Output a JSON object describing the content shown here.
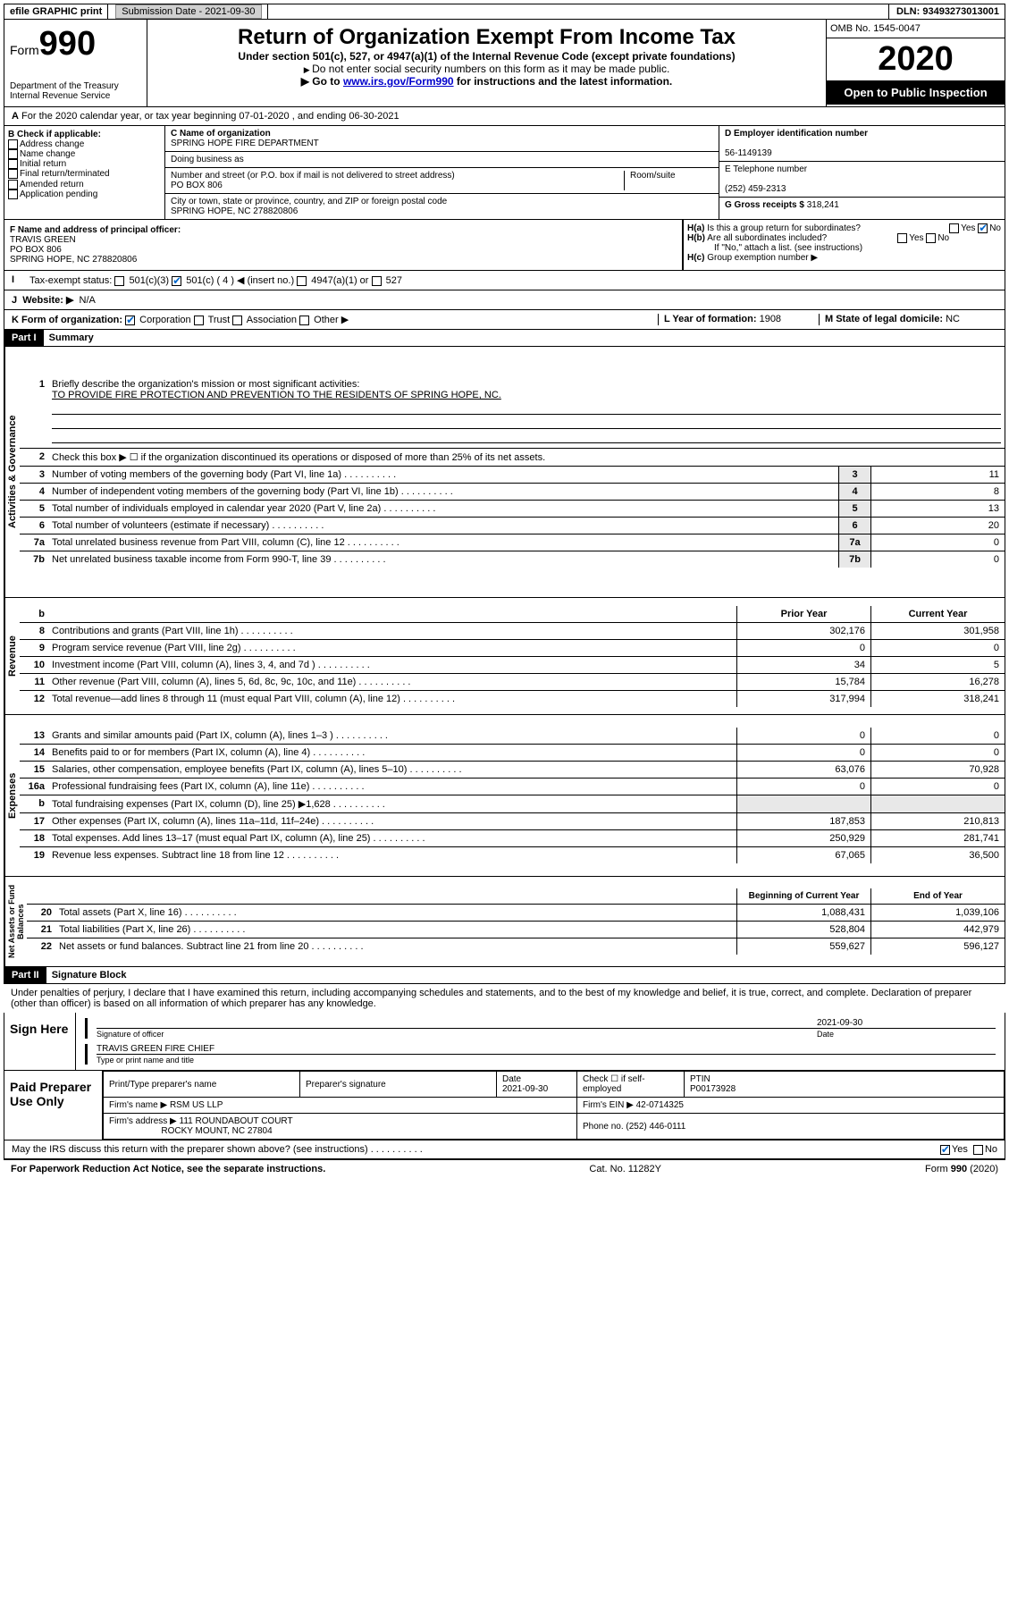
{
  "topbar": {
    "efile_label": "efile GRAPHIC print",
    "submission_label": "Submission Date",
    "submission_date": "2021-09-30",
    "dln_label": "DLN:",
    "dln": "93493273013001"
  },
  "header": {
    "form_prefix": "Form",
    "form_number": "990",
    "department": "Department of the Treasury\nInternal Revenue Service",
    "title": "Return of Organization Exempt From Income Tax",
    "subtitle": "Under section 501(c), 527, or 4947(a)(1) of the Internal Revenue Code (except private foundations)",
    "note1": "Do not enter social security numbers on this form as it may be made public.",
    "note2_pre": "Go to ",
    "note2_link": "www.irs.gov/Form990",
    "note2_post": " for instructions and the latest information.",
    "omb": "OMB No. 1545-0047",
    "year": "2020",
    "open_public": "Open to Public Inspection"
  },
  "period": {
    "line": "For the 2020 calendar year, or tax year beginning 07-01-2020   , and ending 06-30-2021"
  },
  "section_b": {
    "label": "B Check if applicable:",
    "items": [
      "Address change",
      "Name change",
      "Initial return",
      "Final return/terminated",
      "Amended return",
      "Application pending"
    ]
  },
  "section_c": {
    "name_label": "C Name of organization",
    "name": "SPRING HOPE FIRE DEPARTMENT",
    "dba_label": "Doing business as",
    "street_label": "Number and street (or P.O. box if mail is not delivered to street address)",
    "room_label": "Room/suite",
    "street": "PO BOX 806",
    "city_label": "City or town, state or province, country, and ZIP or foreign postal code",
    "city": "SPRING HOPE, NC  278820806"
  },
  "section_d": {
    "label": "D Employer identification number",
    "value": "56-1149139"
  },
  "section_e": {
    "label": "E Telephone number",
    "value": "(252) 459-2313"
  },
  "section_g": {
    "label": "G Gross receipts $",
    "value": "318,241"
  },
  "section_f": {
    "label": "F  Name and address of principal officer:",
    "name": "TRAVIS GREEN",
    "street": "PO BOX 806",
    "city": "SPRING HOPE, NC  278820806"
  },
  "section_h": {
    "ha": "Is this a group return for subordinates?",
    "hb": "Are all subordinates included?",
    "hb_note": "If \"No,\" attach a list. (see instructions)",
    "hc": "Group exemption number ▶"
  },
  "section_i": {
    "label": "Tax-exempt status:",
    "opts": [
      "501(c)(3)",
      "501(c) ( 4 ) ◀ (insert no.)",
      "4947(a)(1) or",
      "527"
    ]
  },
  "section_j": {
    "label": "Website: ▶",
    "value": "N/A"
  },
  "section_k": {
    "label": "K Form of organization:",
    "opts": [
      "Corporation",
      "Trust",
      "Association",
      "Other ▶"
    ]
  },
  "section_l": {
    "label": "L Year of formation:",
    "value": "1908"
  },
  "section_m": {
    "label": "M State of legal domicile:",
    "value": "NC"
  },
  "part1": {
    "header": "Part I",
    "title": "Summary",
    "q1_label": "Briefly describe the organization's mission or most significant activities:",
    "q1_text": "TO PROVIDE FIRE PROTECTION AND PREVENTION TO THE RESIDENTS OF SPRING HOPE, NC.",
    "q2": "Check this box ▶ ☐  if the organization discontinued its operations or disposed of more than 25% of its net assets.",
    "governance": [
      {
        "n": "3",
        "t": "Number of voting members of the governing body (Part VI, line 1a)",
        "v": "11"
      },
      {
        "n": "4",
        "t": "Number of independent voting members of the governing body (Part VI, line 1b)",
        "v": "8"
      },
      {
        "n": "5",
        "t": "Total number of individuals employed in calendar year 2020 (Part V, line 2a)",
        "v": "13"
      },
      {
        "n": "6",
        "t": "Total number of volunteers (estimate if necessary)",
        "v": "20"
      },
      {
        "n": "7a",
        "t": "Total unrelated business revenue from Part VIII, column (C), line 12",
        "v": "0"
      },
      {
        "n": "7b",
        "t": "Net unrelated business taxable income from Form 990-T, line 39",
        "v": "0"
      }
    ],
    "col_headers": {
      "b": "b",
      "prior": "Prior Year",
      "current": "Current Year"
    },
    "revenue": [
      {
        "n": "8",
        "t": "Contributions and grants (Part VIII, line 1h)",
        "p": "302,176",
        "c": "301,958"
      },
      {
        "n": "9",
        "t": "Program service revenue (Part VIII, line 2g)",
        "p": "0",
        "c": "0"
      },
      {
        "n": "10",
        "t": "Investment income (Part VIII, column (A), lines 3, 4, and 7d )",
        "p": "34",
        "c": "5"
      },
      {
        "n": "11",
        "t": "Other revenue (Part VIII, column (A), lines 5, 6d, 8c, 9c, 10c, and 11e)",
        "p": "15,784",
        "c": "16,278"
      },
      {
        "n": "12",
        "t": "Total revenue—add lines 8 through 11 (must equal Part VIII, column (A), line 12)",
        "p": "317,994",
        "c": "318,241"
      }
    ],
    "expenses": [
      {
        "n": "13",
        "t": "Grants and similar amounts paid (Part IX, column (A), lines 1–3 )",
        "p": "0",
        "c": "0"
      },
      {
        "n": "14",
        "t": "Benefits paid to or for members (Part IX, column (A), line 4)",
        "p": "0",
        "c": "0"
      },
      {
        "n": "15",
        "t": "Salaries, other compensation, employee benefits (Part IX, column (A), lines 5–10)",
        "p": "63,076",
        "c": "70,928"
      },
      {
        "n": "16a",
        "t": "Professional fundraising fees (Part IX, column (A), line 11e)",
        "p": "0",
        "c": "0"
      },
      {
        "n": "b",
        "t": "Total fundraising expenses (Part IX, column (D), line 25) ▶1,628",
        "p": "",
        "c": ""
      },
      {
        "n": "17",
        "t": "Other expenses (Part IX, column (A), lines 11a–11d, 11f–24e)",
        "p": "187,853",
        "c": "210,813"
      },
      {
        "n": "18",
        "t": "Total expenses. Add lines 13–17 (must equal Part IX, column (A), line 25)",
        "p": "250,929",
        "c": "281,741"
      },
      {
        "n": "19",
        "t": "Revenue less expenses. Subtract line 18 from line 12",
        "p": "67,065",
        "c": "36,500"
      }
    ],
    "net_headers": {
      "begin": "Beginning of Current Year",
      "end": "End of Year"
    },
    "netassets": [
      {
        "n": "20",
        "t": "Total assets (Part X, line 16)",
        "p": "1,088,431",
        "c": "1,039,106"
      },
      {
        "n": "21",
        "t": "Total liabilities (Part X, line 26)",
        "p": "528,804",
        "c": "442,979"
      },
      {
        "n": "22",
        "t": "Net assets or fund balances. Subtract line 21 from line 20",
        "p": "559,627",
        "c": "596,127"
      }
    ],
    "vert_labels": {
      "gov": "Activities & Governance",
      "rev": "Revenue",
      "exp": "Expenses",
      "net": "Net Assets or Fund Balances"
    }
  },
  "part2": {
    "header": "Part II",
    "title": "Signature Block",
    "perjury": "Under penalties of perjury, I declare that I have examined this return, including accompanying schedules and statements, and to the best of my knowledge and belief, it is true, correct, and complete. Declaration of preparer (other than officer) is based on all information of which preparer has any knowledge.",
    "sign_here": "Sign Here",
    "sig_officer": "Signature of officer",
    "sig_date_label": "Date",
    "sig_date": "2021-09-30",
    "officer": "TRAVIS GREEN  FIRE CHIEF",
    "type_name": "Type or print name and title",
    "paid_prep": "Paid Preparer Use Only",
    "prep_name_label": "Print/Type preparer's name",
    "prep_sig_label": "Preparer's signature",
    "prep_date_label": "Date",
    "prep_date": "2021-09-30",
    "self_emp": "Check ☐ if self-employed",
    "ptin_label": "PTIN",
    "ptin": "P00173928",
    "firm_name_label": "Firm's name    ▶",
    "firm_name": "RSM US LLP",
    "firm_ein_label": "Firm's EIN ▶",
    "firm_ein": "42-0714325",
    "firm_addr_label": "Firm's address ▶",
    "firm_addr1": "111 ROUNDABOUT COURT",
    "firm_addr2": "ROCKY MOUNT, NC  27804",
    "phone_label": "Phone no.",
    "phone": "(252) 446-0111",
    "discuss": "May the IRS discuss this return with the preparer shown above? (see instructions)"
  },
  "footer": {
    "left": "For Paperwork Reduction Act Notice, see the separate instructions.",
    "mid": "Cat. No. 11282Y",
    "right": "Form 990 (2020)"
  }
}
